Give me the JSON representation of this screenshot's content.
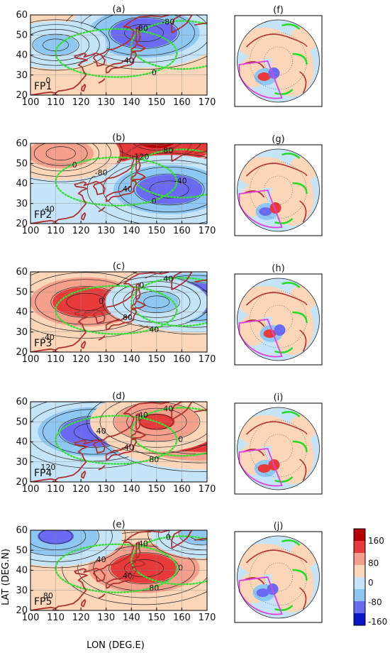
{
  "figure": {
    "xlabel": "LON (DEG.E)",
    "ylabel": "LAT (DEG.N)",
    "x_ticks": [
      "100",
      "110",
      "120",
      "130",
      "140",
      "150",
      "160",
      "170"
    ],
    "y_ticks": [
      "20",
      "30",
      "40",
      "50",
      "60"
    ]
  },
  "panels_left": [
    {
      "letter": "(a)",
      "name": "FP1",
      "contour_labels": [
        "-80",
        "-80",
        "-40",
        "0",
        "0"
      ]
    },
    {
      "letter": "(b)",
      "name": "FP2",
      "contour_labels": [
        "120",
        "80",
        "40",
        "0",
        "-40",
        "-80",
        "-40",
        "0"
      ]
    },
    {
      "letter": "(c)",
      "name": "FP3",
      "contour_labels": [
        "0",
        "40",
        "80",
        "40",
        "-40",
        "0"
      ]
    },
    {
      "letter": "(d)",
      "name": "FP4",
      "contour_labels": [
        "-40",
        "40",
        "-40",
        "80",
        "120",
        "40",
        "0"
      ]
    },
    {
      "letter": "(e)",
      "name": "FP5",
      "contour_labels": [
        "-40",
        "0",
        "40",
        "80",
        "80",
        "40",
        "0"
      ]
    }
  ],
  "panels_right": [
    {
      "letter": "(f)"
    },
    {
      "letter": "(g)"
    },
    {
      "letter": "(h)"
    },
    {
      "letter": "(i)"
    },
    {
      "letter": "(j)"
    }
  ],
  "colorbar": {
    "labels": [
      "160",
      "80",
      "0",
      "-80",
      "-160"
    ],
    "colors": [
      "#b40000",
      "#e83a3a",
      "#f4a08c",
      "#fbd6b8",
      "#c6e4f8",
      "#8ec8f2",
      "#6a6af2",
      "#0a14c8"
    ]
  },
  "colors": {
    "coast": "#b03030",
    "green_dotted": "#33e033",
    "green_solid": "#22dd22",
    "magenta": "#e040e0",
    "warm1": "#fbd6b8",
    "warm2": "#f4a08c",
    "warm3": "#e83a3a",
    "warm4": "#b40000",
    "cool1": "#c6e4f8",
    "cool2": "#8ec8f2",
    "cool3": "#6a6af2",
    "cool4": "#0a14c8"
  },
  "chart_data": [
    {
      "type": "heatmap",
      "panel": "(a)",
      "label": "FP1",
      "xlabel": "",
      "ylabel": "",
      "xlim": [
        100,
        170
      ],
      "ylim": [
        20,
        60
      ],
      "background": "warm1",
      "anomalies": [
        {
          "lon": 145,
          "lat": 51,
          "value": -110
        },
        {
          "lon": 110,
          "lat": 45,
          "value": -40
        }
      ],
      "contour_values": [
        -80,
        -80,
        -40,
        0,
        0
      ]
    },
    {
      "type": "heatmap",
      "panel": "(b)",
      "label": "FP2",
      "xlim": [
        100,
        170
      ],
      "ylim": [
        20,
        60
      ],
      "background": "cool1",
      "anomalies": [
        {
          "lon": 150,
          "lat": 62,
          "value": 170
        },
        {
          "lon": 155,
          "lat": 37,
          "value": -110
        },
        {
          "lon": 112,
          "lat": 55,
          "value": 60
        }
      ],
      "contour_values": [
        120,
        80,
        40,
        0,
        -40,
        -80,
        -40,
        0
      ]
    },
    {
      "type": "heatmap",
      "panel": "(c)",
      "label": "FP3",
      "xlim": [
        100,
        170
      ],
      "ylim": [
        20,
        60
      ],
      "background": "warm1",
      "anomalies": [
        {
          "lon": 122,
          "lat": 45,
          "value": 110
        },
        {
          "lon": 165,
          "lat": 47,
          "value": -110
        },
        {
          "lon": 150,
          "lat": 45,
          "value": -40
        }
      ],
      "contour_values": [
        0,
        40,
        80,
        40,
        -40,
        0
      ]
    },
    {
      "type": "heatmap",
      "panel": "(d)",
      "label": "FP4",
      "xlim": [
        100,
        170
      ],
      "ylim": [
        20,
        60
      ],
      "background": "cool1",
      "anomalies": [
        {
          "lon": 125,
          "lat": 45,
          "value": -110
        },
        {
          "lon": 167,
          "lat": 48,
          "value": 170
        },
        {
          "lon": 150,
          "lat": 50,
          "value": 80
        }
      ],
      "contour_values": [
        -40,
        40,
        -40,
        80,
        120,
        40,
        0
      ]
    },
    {
      "type": "heatmap",
      "panel": "(e)",
      "label": "FP5",
      "xlim": [
        100,
        170
      ],
      "ylim": [
        20,
        60
      ],
      "background": "warm1",
      "anomalies": [
        {
          "lon": 145,
          "lat": 41,
          "value": 110
        },
        {
          "lon": 110,
          "lat": 57,
          "value": -80
        },
        {
          "lon": 168,
          "lat": 58,
          "value": -40
        }
      ],
      "contour_values": [
        -40,
        0,
        40,
        80,
        80,
        40,
        0
      ]
    }
  ]
}
